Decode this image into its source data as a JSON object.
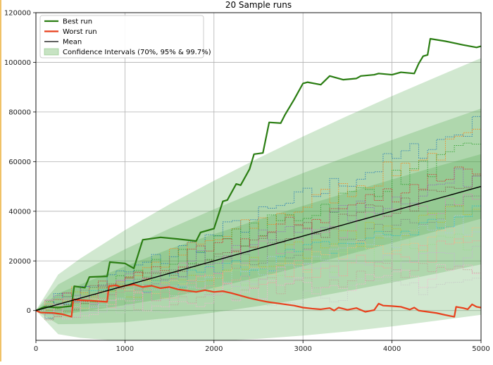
{
  "chart_data": {
    "type": "line",
    "title": "20 Sample runs",
    "xlabel": "",
    "ylabel": "",
    "xlim": [
      0,
      5000
    ],
    "ylim": [
      -12000,
      120000
    ],
    "xticks": [
      0,
      1000,
      2000,
      3000,
      4000,
      5000
    ],
    "yticks": [
      0,
      20000,
      40000,
      60000,
      80000,
      100000,
      120000
    ],
    "grid": true,
    "legend_position": "top-left",
    "legend": [
      {
        "label": "Best run",
        "kind": "line",
        "color": "#2a7d12"
      },
      {
        "label": "Worst run",
        "kind": "line",
        "color": "#e8401c"
      },
      {
        "label": "Mean",
        "kind": "line",
        "color": "#000000"
      },
      {
        "label": "Confidence Intervals (70%, 95% & 99.7%)",
        "kind": "patch",
        "color": "#72b86a"
      }
    ],
    "confidence_bands": {
      "x": [
        0,
        250,
        500,
        1000,
        1500,
        2000,
        2500,
        3000,
        3500,
        4000,
        4500,
        5000
      ],
      "mean": [
        0,
        2500,
        5000,
        10000,
        15000,
        20000,
        25000,
        30000,
        35000,
        40000,
        45000,
        50000
      ],
      "bands": [
        {
          "label": "70%",
          "upper": [
            0,
            6900,
            10500,
            17800,
            24800,
            30800,
            36600,
            42200,
            47500,
            52800,
            58000,
            63000
          ],
          "lower": [
            0,
            -1900,
            -500,
            2200,
            5200,
            9200,
            13400,
            17800,
            22500,
            27200,
            32000,
            37000
          ]
        },
        {
          "label": "95%",
          "upper": [
            0,
            10500,
            15400,
            24700,
            33000,
            40800,
            48200,
            55400,
            62100,
            68700,
            75100,
            81400
          ],
          "lower": [
            0,
            -5500,
            -5400,
            -4700,
            -3000,
            -800,
            1800,
            4600,
            7900,
            11300,
            14900,
            18600
          ]
        },
        {
          "label": "99.7%",
          "upper": [
            0,
            14500,
            21000,
            32400,
            42800,
            52300,
            61400,
            70100,
            78400,
            86400,
            94100,
            101700
          ],
          "lower": [
            0,
            -9500,
            -11000,
            -12400,
            -12800,
            -12300,
            -11400,
            -10100,
            -8400,
            -6400,
            -4100,
            -1700
          ]
        }
      ]
    },
    "series": [
      {
        "name": "Best run",
        "color": "#2a7d12",
        "x": [
          0,
          100,
          250,
          400,
          430,
          550,
          600,
          800,
          830,
          1000,
          1100,
          1200,
          1400,
          1600,
          1800,
          1850,
          2000,
          2100,
          2150,
          2250,
          2300,
          2400,
          2450,
          2550,
          2620,
          2750,
          2800,
          2900,
          3000,
          3050,
          3200,
          3300,
          3450,
          3600,
          3650,
          3800,
          3850,
          4000,
          4100,
          4250,
          4300,
          4350,
          4400,
          4430,
          4600,
          4800,
          4950,
          5000
        ],
        "values": [
          0,
          1500,
          1200,
          1800,
          9800,
          9200,
          13500,
          13800,
          19500,
          19000,
          17000,
          28500,
          29500,
          28800,
          28000,
          31500,
          33000,
          44000,
          44500,
          51000,
          50500,
          57000,
          63000,
          63500,
          75800,
          75500,
          79000,
          85000,
          91500,
          92000,
          91000,
          94500,
          93000,
          93500,
          94500,
          95000,
          95500,
          95000,
          96000,
          95500,
          99500,
          102500,
          103000,
          109500,
          108500,
          107000,
          106000,
          106500
        ]
      },
      {
        "name": "Worst run",
        "color": "#e8401c",
        "x": [
          0,
          50,
          200,
          300,
          400,
          420,
          500,
          600,
          800,
          820,
          900,
          950,
          1000,
          1100,
          1200,
          1300,
          1400,
          1500,
          1600,
          1700,
          1800,
          1900,
          2000,
          2100,
          2200,
          2300,
          2400,
          2500,
          2600,
          2700,
          2800,
          2900,
          3000,
          3100,
          3200,
          3300,
          3350,
          3400,
          3500,
          3600,
          3700,
          3800,
          3850,
          3900,
          4000,
          4100,
          4200,
          4250,
          4300,
          4400,
          4500,
          4600,
          4700,
          4720,
          4800,
          4850,
          4900,
          4950,
          5000
        ],
        "values": [
          0,
          -800,
          -1000,
          -1500,
          -2500,
          4500,
          4200,
          4000,
          3500,
          9800,
          10200,
          9500,
          10000,
          10500,
          9500,
          10000,
          9000,
          9500,
          8500,
          8000,
          7500,
          8200,
          7500,
          7800,
          7000,
          6000,
          5000,
          4200,
          3500,
          3000,
          2500,
          2000,
          1200,
          800,
          500,
          1000,
          0,
          1200,
          300,
          1000,
          -500,
          200,
          2800,
          2000,
          1800,
          1500,
          400,
          1200,
          0,
          -500,
          -1000,
          -1800,
          -2500,
          1500,
          1000,
          500,
          2500,
          1500,
          1200
        ]
      },
      {
        "name": "Mean",
        "color": "#000000",
        "x": [
          0,
          5000
        ],
        "values": [
          0,
          50000
        ]
      }
    ]
  }
}
